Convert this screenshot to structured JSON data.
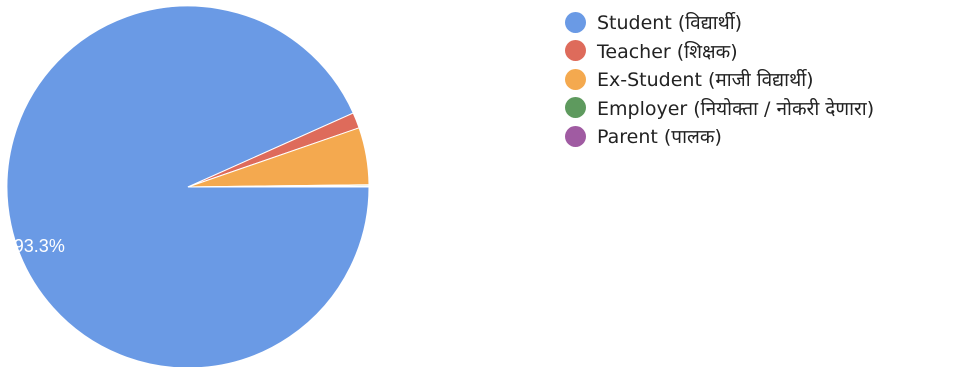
{
  "chart_data": {
    "type": "pie",
    "start_angle_deg": 90,
    "direction": "clockwise",
    "slices": [
      {
        "label": "Student (विद्यार्थी)",
        "value": 93.3,
        "color": "#6a9ae5",
        "data_label": "93.3%"
      },
      {
        "label": "Teacher (शिक्षक)",
        "value": 1.4,
        "color": "#de6b5b",
        "data_label": ""
      },
      {
        "label": "Ex-Student (माजी विद्यार्थी)",
        "value": 5.1,
        "color": "#f4a94f",
        "data_label": ""
      },
      {
        "label": "Employer (नियोक्ता / नोकरी देणारा)",
        "value": 0.1,
        "color": "#5e9a5e",
        "data_label": ""
      },
      {
        "label": "Parent (पालक)",
        "value": 0.1,
        "color": "#a05ba2",
        "data_label": ""
      }
    ],
    "legend_position": "right"
  }
}
